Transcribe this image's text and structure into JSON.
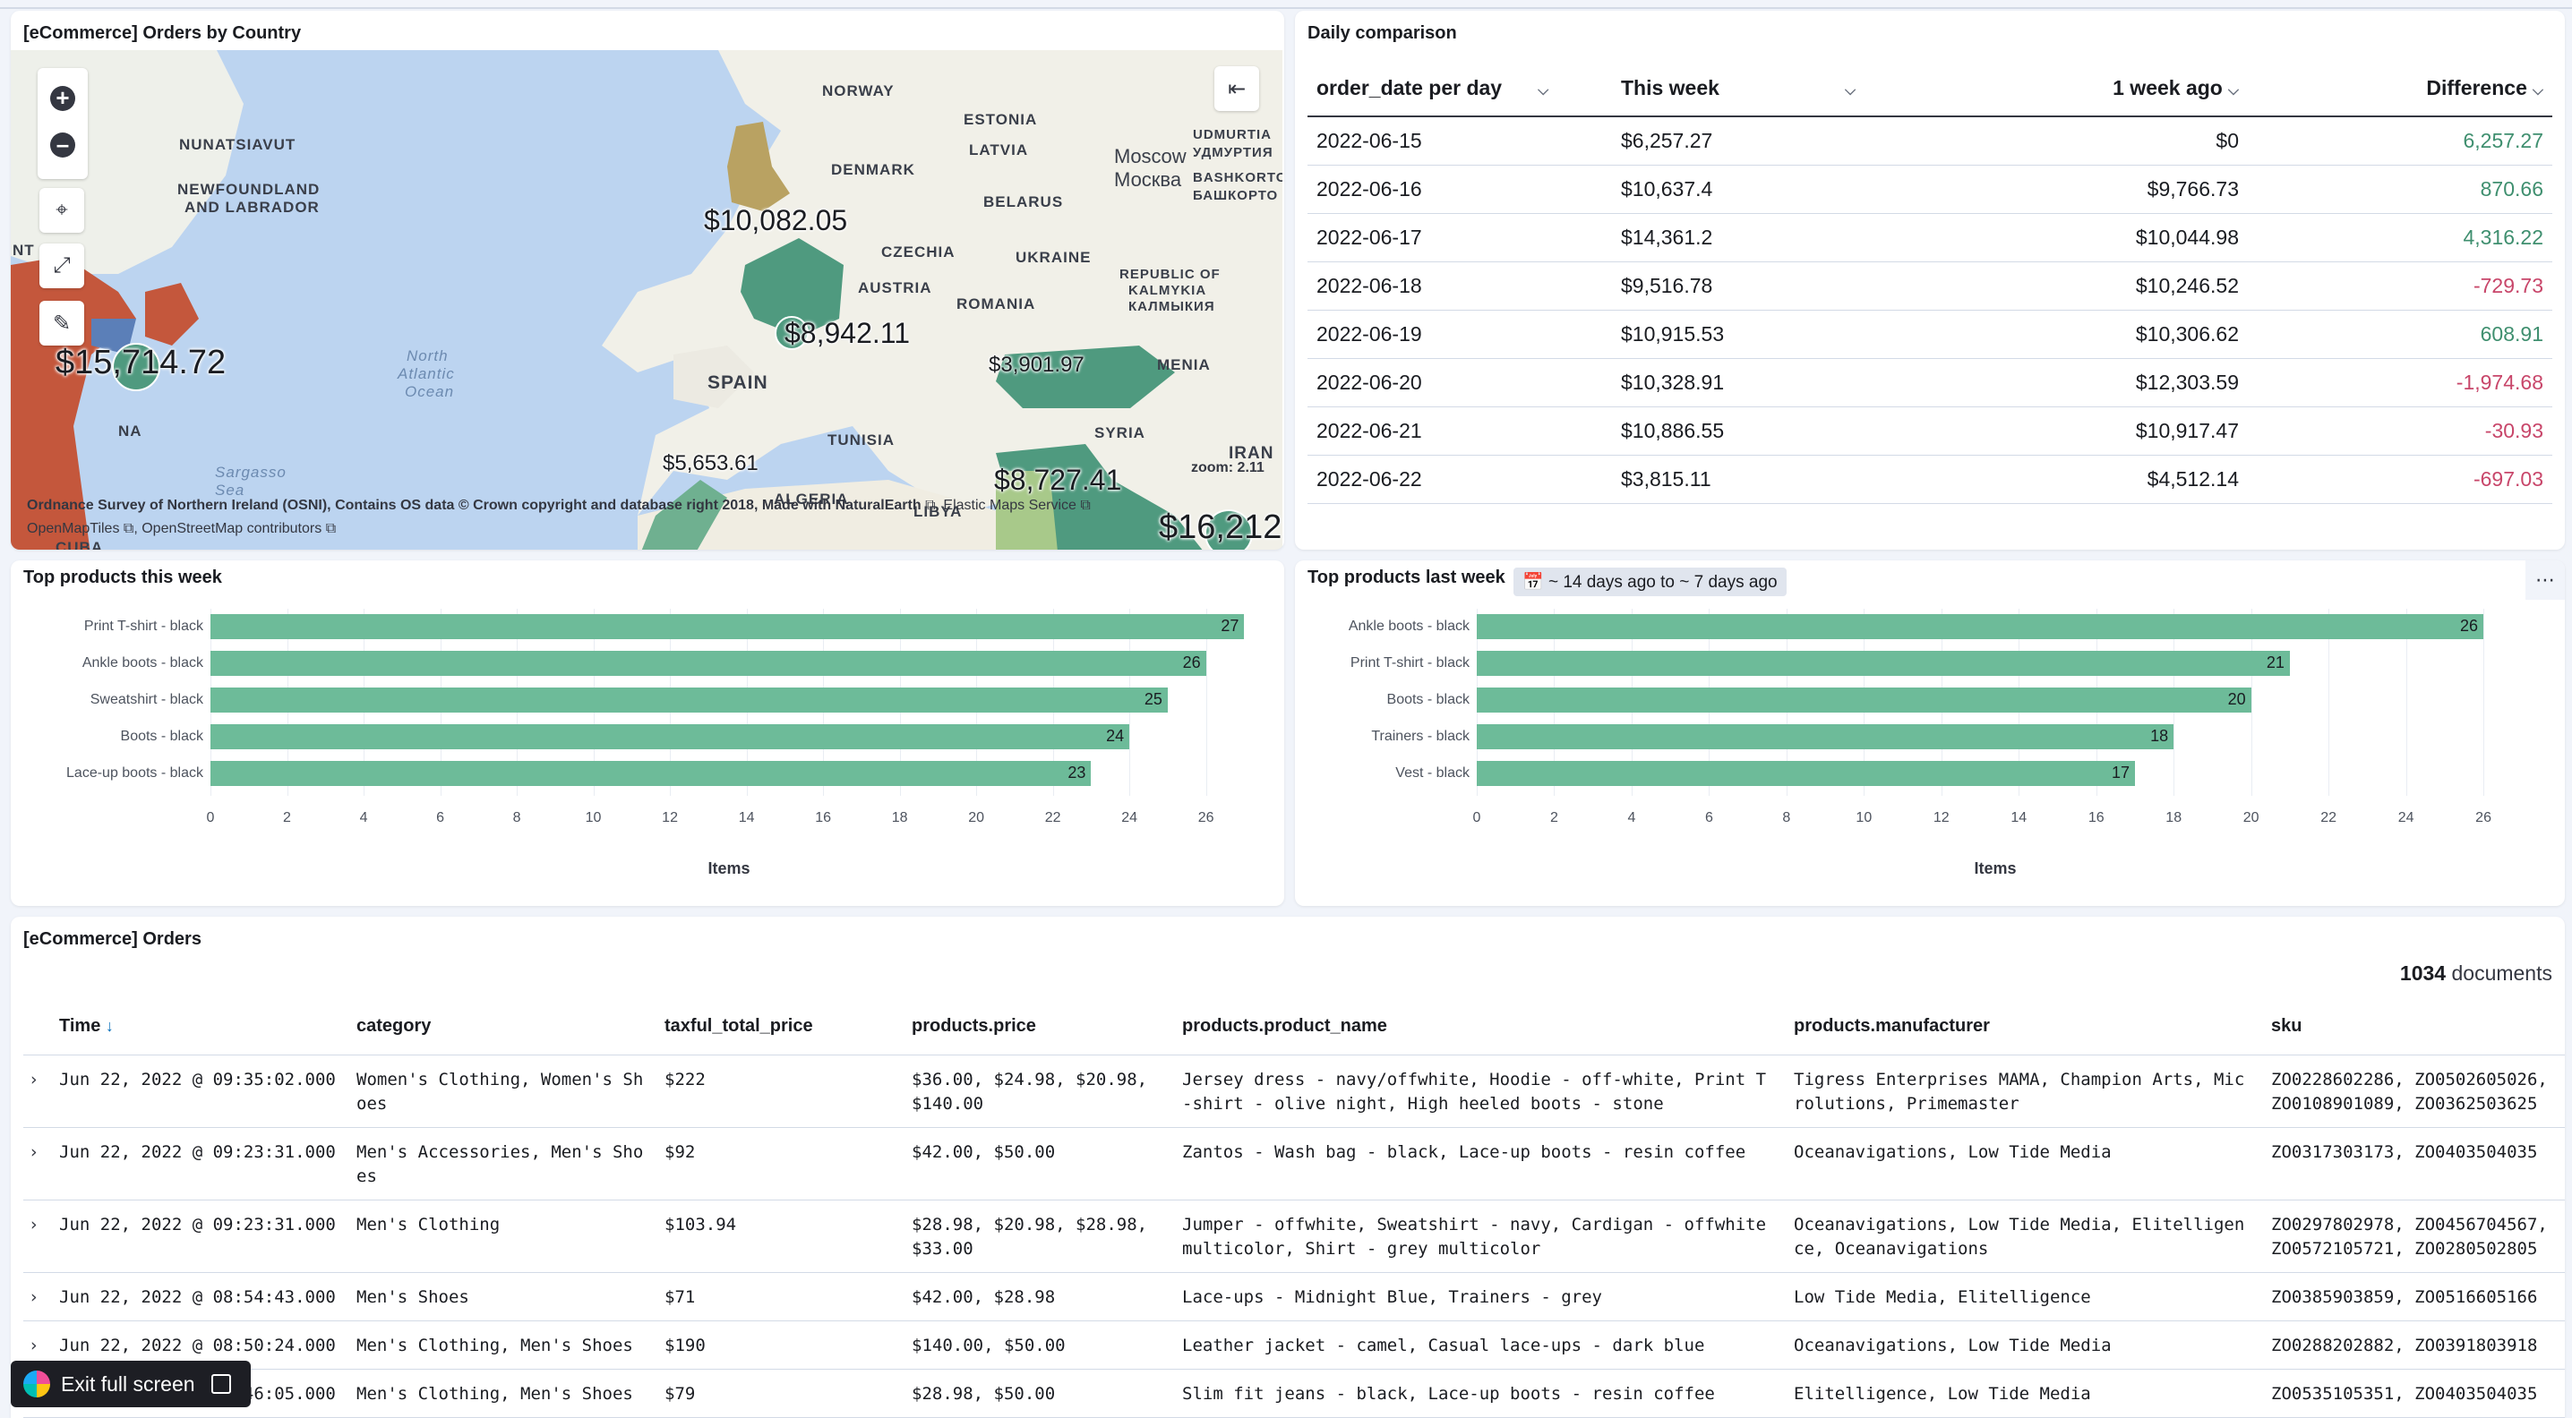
{
  "map_panel": {
    "title": "[eCommerce] Orders by Country",
    "place_labels": [
      "NORWAY",
      "ESTONIA",
      "LATVIA",
      "DENMARK",
      "BELARUS",
      "UDMURTIA",
      "УДМУРТИЯ",
      "BASHKORTO",
      "БАШКОРТО",
      "Moscow",
      "Москва",
      "NUNATSIAVUT",
      "NEWFOUNDLAND",
      "AND LABRADOR",
      "CZECHIA",
      "UKRAINE",
      "REPUBLIC OF",
      "KALMYKIA",
      "КАЛМЫКИЯ",
      "AUSTRIA",
      "ROMANIA",
      "SPAIN",
      "TUNISIA",
      "SYRIA",
      "IRAN",
      "LIBYA",
      "ALGERIA",
      "CUBA",
      "NT",
      "NA",
      "North",
      "Atlantic",
      "Ocean",
      "Sargasso",
      "Sea",
      "MENIA"
    ],
    "value_labels": [
      "$10,082.05",
      "$15,714.72",
      "$8,942.11",
      "$3,901.97",
      "$5,653.61",
      "$8,727.41",
      "$16,212."
    ],
    "zoom_text": "zoom: 2.11",
    "attribution_line1": "Ordnance Survey of Northern Ireland (OSNI), Contains OS data © Crown copyright and database right 2018, Made with NaturalEarth",
    "attribution_ems": "Elastic Maps Service",
    "attribution_omt": "OpenMapTiles",
    "attribution_osm": "OpenStreetMap contributors",
    "tools": [
      "zoom-in",
      "zoom-out",
      "fit-to-data",
      "draw-shape",
      "draw-bounds",
      "layers-toggle"
    ]
  },
  "daily_panel": {
    "title": "Daily comparison",
    "columns": [
      "order_date per day",
      "This week",
      "1 week ago",
      "Difference"
    ],
    "rows": [
      {
        "date": "2022-06-15",
        "this_week": "$6,257.27",
        "week_ago": "$0",
        "diff": "6,257.27",
        "sign": "pos"
      },
      {
        "date": "2022-06-16",
        "this_week": "$10,637.4",
        "week_ago": "$9,766.73",
        "diff": "870.66",
        "sign": "pos"
      },
      {
        "date": "2022-06-17",
        "this_week": "$14,361.2",
        "week_ago": "$10,044.98",
        "diff": "4,316.22",
        "sign": "pos"
      },
      {
        "date": "2022-06-18",
        "this_week": "$9,516.78",
        "week_ago": "$10,246.52",
        "diff": "-729.73",
        "sign": "neg"
      },
      {
        "date": "2022-06-19",
        "this_week": "$10,915.53",
        "week_ago": "$10,306.62",
        "diff": "608.91",
        "sign": "pos"
      },
      {
        "date": "2022-06-20",
        "this_week": "$10,328.91",
        "week_ago": "$12,303.59",
        "diff": "-1,974.68",
        "sign": "neg"
      },
      {
        "date": "2022-06-21",
        "this_week": "$10,886.55",
        "week_ago": "$10,917.47",
        "diff": "-30.93",
        "sign": "neg"
      },
      {
        "date": "2022-06-22",
        "this_week": "$3,815.11",
        "week_ago": "$4,512.14",
        "diff": "-697.03",
        "sign": "neg"
      }
    ]
  },
  "top_this_week": {
    "title": "Top products this week",
    "xlabel": "Items",
    "categories": [
      "Print T-shirt - black",
      "Ankle boots - black",
      "Sweatshirt - black",
      "Boots - black",
      "Lace-up boots - black"
    ],
    "values": [
      27,
      26,
      25,
      24,
      23
    ],
    "ticks": [
      "0",
      "2",
      "4",
      "6",
      "8",
      "10",
      "12",
      "14",
      "16",
      "18",
      "20",
      "22",
      "24",
      "26"
    ],
    "xmax": 27.2
  },
  "top_last_week": {
    "title": "Top products last week",
    "time_badge": "~ 14 days ago to ~ 7 days ago",
    "xlabel": "Items",
    "categories": [
      "Ankle boots - black",
      "Print T-shirt - black",
      "Boots - black",
      "Trainers - black",
      "Vest - black"
    ],
    "values": [
      26,
      21,
      20,
      18,
      17
    ],
    "ticks": [
      "0",
      "2",
      "4",
      "6",
      "8",
      "10",
      "12",
      "14",
      "16",
      "18",
      "20",
      "22",
      "24",
      "26"
    ],
    "xmax": 26.9
  },
  "orders_panel": {
    "title": "[eCommerce] Orders",
    "doc_count": "1034",
    "doc_label": "documents",
    "columns": [
      "Time",
      "category",
      "taxful_total_price",
      "products.price",
      "products.product_name",
      "products.manufacturer",
      "sku"
    ],
    "rows": [
      {
        "time": "Jun 22, 2022 @ 09:35:02.000",
        "category": "Women's Clothing, Women's Sh\noes",
        "total": "$222",
        "price": "$36.00, $24.98, $20.98,\n$140.00",
        "name": "Jersey dress - navy/offwhite, Hoodie - off-white, Print T\n-shirt - olive night, High heeled boots - stone",
        "manufacturer": "Tigress Enterprises MAMA, Champion Arts, Mic\nrolutions, Primemaster",
        "sku": "ZO0228602286, ZO0502605026,\nZO0108901089, ZO0362503625"
      },
      {
        "time": "Jun 22, 2022 @ 09:23:31.000",
        "category": "Men's Accessories, Men's Sho\nes",
        "total": "$92",
        "price": "$42.00, $50.00",
        "name": "Zantos - Wash bag - black, Lace-up boots - resin coffee",
        "manufacturer": "Oceanavigations, Low Tide Media",
        "sku": "ZO0317303173, ZO0403504035"
      },
      {
        "time": "Jun 22, 2022 @ 09:23:31.000",
        "category": "Men's Clothing",
        "total": "$103.94",
        "price": "$28.98, $20.98, $28.98,\n$33.00",
        "name": "Jumper - offwhite, Sweatshirt - navy, Cardigan - offwhite\nmulticolor, Shirt - grey multicolor",
        "manufacturer": "Oceanavigations, Low Tide Media, Elitelligen\nce, Oceanavigations",
        "sku": "ZO0297802978, ZO0456704567,\nZO0572105721, ZO0280502805"
      },
      {
        "time": "Jun 22, 2022 @ 08:54:43.000",
        "category": "Men's Shoes",
        "total": "$71",
        "price": "$42.00, $28.98",
        "name": "Lace-ups - Midnight Blue, Trainers - grey",
        "manufacturer": "Low Tide Media, Elitelligence",
        "sku": "ZO0385903859, ZO0516605166"
      },
      {
        "time": "Jun 22, 2022 @ 08:50:24.000",
        "category": "Men's Clothing, Men's Shoes",
        "total": "$190",
        "price": "$140.00, $50.00",
        "name": "Leather jacket - camel, Casual lace-ups - dark blue",
        "manufacturer": "Oceanavigations, Low Tide Media",
        "sku": "ZO0288202882, ZO0391803918"
      },
      {
        "time": "Jun 22, 2022 @ 08:46:05.000",
        "category": "Men's Clothing, Men's Shoes",
        "total": "$79",
        "price": "$28.98, $50.00",
        "name": "Slim fit jeans - black, Lace-up boots - resin coffee",
        "manufacturer": "Elitelligence, Low Tide Media",
        "sku": "ZO0535105351, ZO0403504035"
      }
    ]
  },
  "exit_fullscreen": {
    "label": "Exit full screen"
  },
  "colors": {
    "bar": "#6dbb99",
    "positive": "#3f8f6f",
    "negative": "#c8466a",
    "map_water": "#bcd4f0",
    "choropleth_dark": "#4f9a7f",
    "choropleth_red": "#c4573c"
  }
}
